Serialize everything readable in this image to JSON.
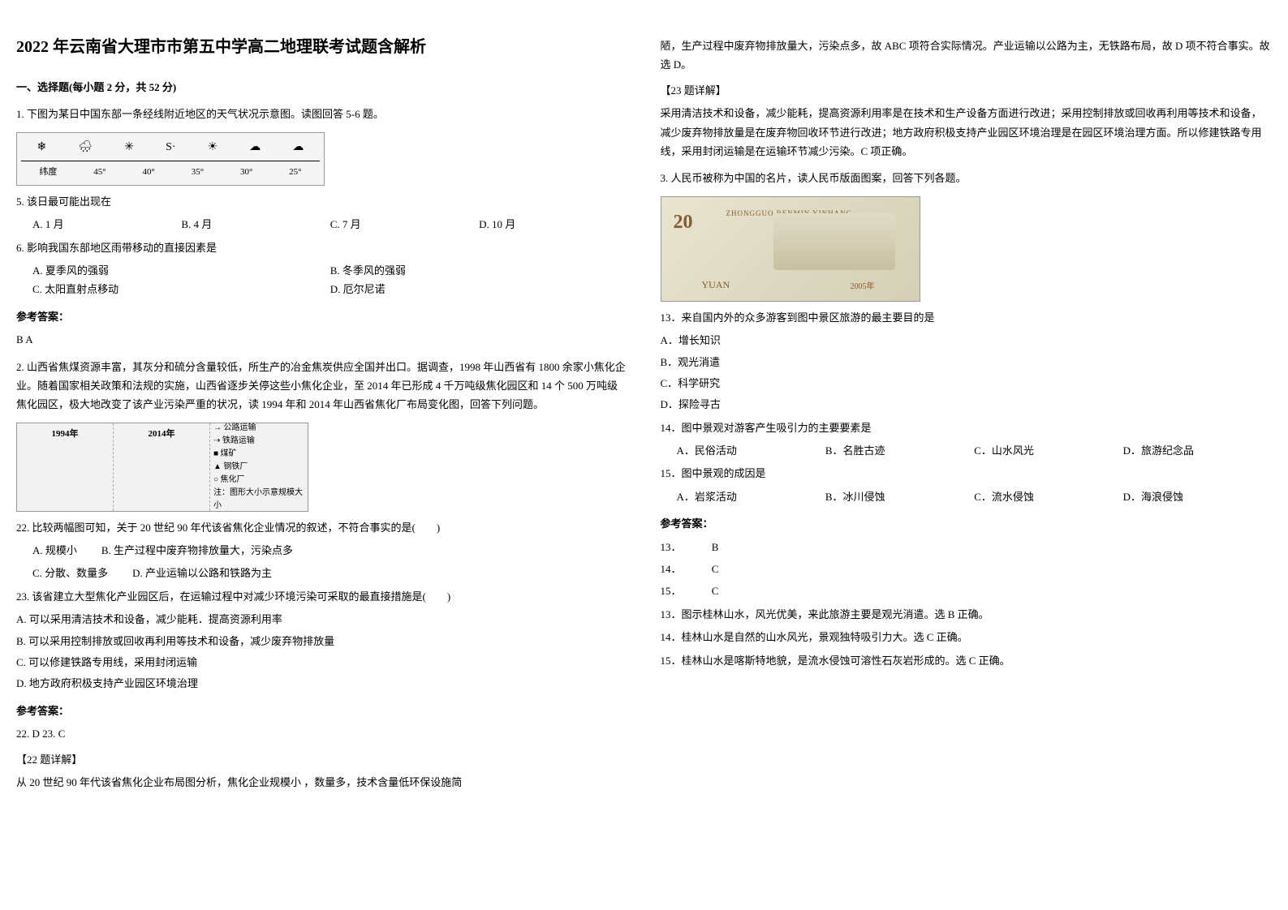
{
  "title": "2022 年云南省大理市市第五中学高二地理联考试题含解析",
  "section1_header": "一、选择题(每小题 2 分，共 52 分)",
  "q1": {
    "intro": "1. 下图为某日中国东部一条经线附近地区的天气状况示意图。读图回答 5-6 题。",
    "axis_label": "纬度",
    "axis_values": [
      "45°",
      "40°",
      "35°",
      "30°",
      "25°"
    ],
    "weather_glyphs": [
      "❄",
      "🌧",
      "✳",
      "S·",
      "☀",
      "☁",
      "☁"
    ],
    "sub5": "5. 该日最可能出现在",
    "sub5_options": [
      "A. 1 月",
      "B. 4 月",
      "C. 7 月",
      "D. 10 月"
    ],
    "sub6": "6. 影响我国东部地区雨带移动的直接因素是",
    "sub6_options": [
      "A. 夏季风的强弱",
      "B. 冬季风的强弱",
      "C. 太阳直射点移动",
      "D. 厄尔尼诺"
    ],
    "answer_heading": "参考答案：",
    "answer": "B  A"
  },
  "q2": {
    "intro": "2. 山西省焦煤资源丰富，其灰分和硫分含量较低，所生产的冶金焦炭供应全国并出口。据调查，1998 年山西省有 1800 余家小焦化企业。随着国家相关政策和法规的实施，山西省逐步关停这些小焦化企业，至 2014 年已形成 4 千万吨级焦化园区和 14 个 500 万吨级焦化园区，极大地改变了该产业污染严重的状况，读 1994 年和 2014 年山西省焦化厂布局变化图，回答下列问题。",
    "map_years": [
      "1994年",
      "2014年"
    ],
    "legend_items": [
      "→ 公路运输",
      "⇢ 铁路运输",
      "■ 煤矿",
      "▲ 钢铁厂",
      "○ 焦化厂",
      "注：图形大小示意规模大小"
    ],
    "q22": "22. 比较两幅图可知，关于 20 世纪 90 年代该省焦化企业情况的叙述，不符合事实的是(　　)",
    "q22_options": [
      "A. 规模小",
      "B. 生产过程中废弃物排放量大，污染点多",
      "C. 分散、数量多",
      "D. 产业运输以公路和铁路为主"
    ],
    "q23": "23. 该省建立大型焦化产业园区后，在运输过程中对减少环境污染可采取的最直接措施是(　　)",
    "q23_options": [
      "A. 可以采用清洁技术和设备，减少能耗．提高资源利用率",
      "B. 可以采用控制排放或回收再利用等技术和设备，减少废弃物排放量",
      "C. 可以修建铁路专用线，采用封闭运输",
      "D. 地方政府积极支持产业园区环境治理"
    ],
    "answer_heading": "参考答案：",
    "answer_line": "22. D        23. C",
    "analysis22_heading": "【22 题详解】",
    "analysis22_body": "从 20 世纪 90 年代该省焦化企业布局图分析，焦化企业规模小 ，数量多，技术含量低环保设施简",
    "analysis22_cont": "陋，生产过程中废弃物排放量大，污染点多，故 ABC 项符合实际情况。产业运输以公路为主，无铁路布局，故 D 项不符合事实。故选 D。",
    "analysis23_heading": "【23 题详解】",
    "analysis23_body": "采用清洁技术和设备，减少能耗，提高资源利用率是在技术和生产设备方面进行改进；采用控制排放或回收再利用等技术和设备，减少废弃物排放量是在废弃物回收环节进行改进；地方政府积极支持产业园区环境治理是在园区环境治理方面。所以修建铁路专用线，采用封闭运输是在运输环节减少污染。C 项正确。"
  },
  "q3": {
    "intro": "3. 人民币被称为中国的名片，读人民币版面图案，回答下列各题。",
    "currency": {
      "denomination": "20",
      "bank_text": "ZHONGGUO RENMIN YINHANG",
      "unit": "YUAN",
      "year": "2005年"
    },
    "q13": "13．来自国内外的众多游客到图中景区旅游的最主要目的是",
    "q13_options": [
      "A．增长知识",
      "B．观光消遣",
      "C．科学研究",
      "D．探险寻古"
    ],
    "q14": "14．图中景观对游客产生吸引力的主要要素是",
    "q14_options": [
      "A．民俗活动",
      "B．名胜古迹",
      "C．山水风光",
      "D．旅游纪念品"
    ],
    "q15": "15．图中景观的成因是",
    "q15_options": [
      "A．岩浆活动",
      "B．冰川侵蚀",
      "C．流水侵蚀",
      "D．海浪侵蚀"
    ],
    "answer_heading": "参考答案：",
    "answers": [
      {
        "num": "13．",
        "letter": "B"
      },
      {
        "num": "14．",
        "letter": "C"
      },
      {
        "num": "15．",
        "letter": "C"
      }
    ],
    "explanations": [
      "13．图示桂林山水，风光优美，来此旅游主要是观光消遣。选 B 正确。",
      "14．桂林山水是自然的山水风光，景观独特吸引力大。选 C 正确。",
      "15．桂林山水是喀斯特地貌，是流水侵蚀可溶性石灰岩形成的。选 C 正确。"
    ]
  }
}
